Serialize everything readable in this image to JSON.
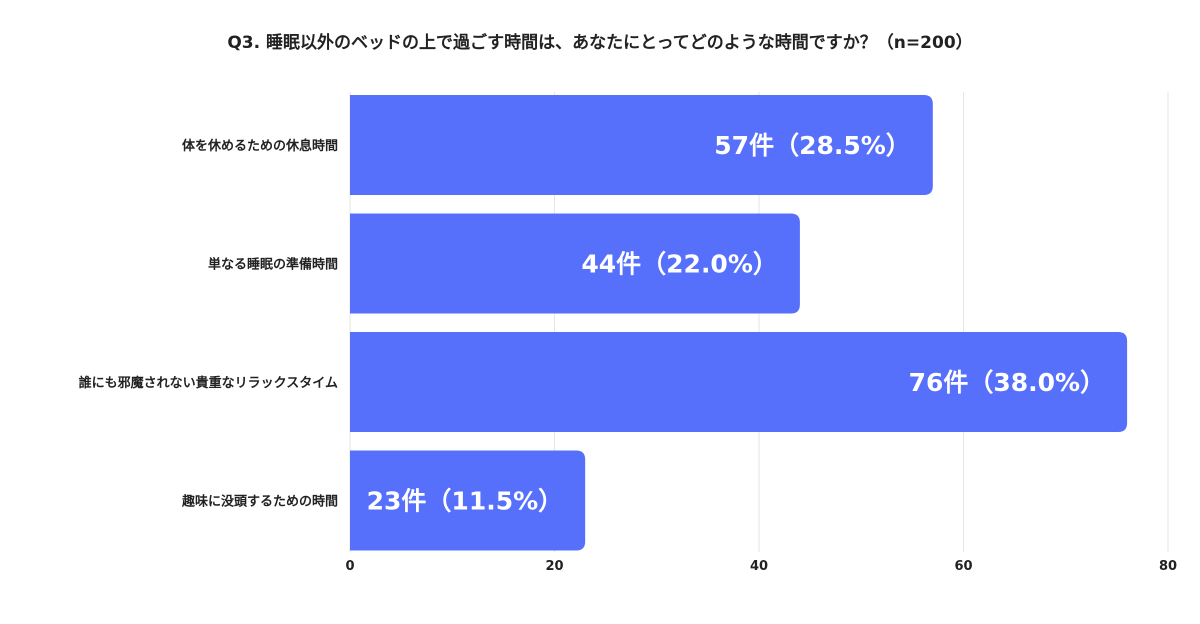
{
  "colors": {
    "bar": "#5670fc",
    "grid": "#e6e6e6",
    "text": "#222222"
  },
  "chart_data": {
    "type": "bar",
    "orientation": "horizontal",
    "title": "Q3. 睡眠以外のベッドの上で過ごす時間は、あなたにとってどのような時間ですか？（n=200）",
    "categories": [
      "体を休めるための休息時間",
      "単なる睡眠の準備時間",
      "誰にも邪魔されない貴重なリラックスタイム",
      "趣味に没頭するための時間"
    ],
    "values": [
      57,
      44,
      76,
      23
    ],
    "data_labels": [
      "57件（28.5%）",
      "44件（22.0%）",
      "76件（38.0%）",
      "23件（11.5%）"
    ],
    "xlim": [
      0,
      80
    ],
    "xticks": [
      0,
      20,
      40,
      60,
      80
    ],
    "xtick_labels": [
      "0",
      "20",
      "40",
      "60",
      "80"
    ],
    "grid": true,
    "legend": "none"
  }
}
